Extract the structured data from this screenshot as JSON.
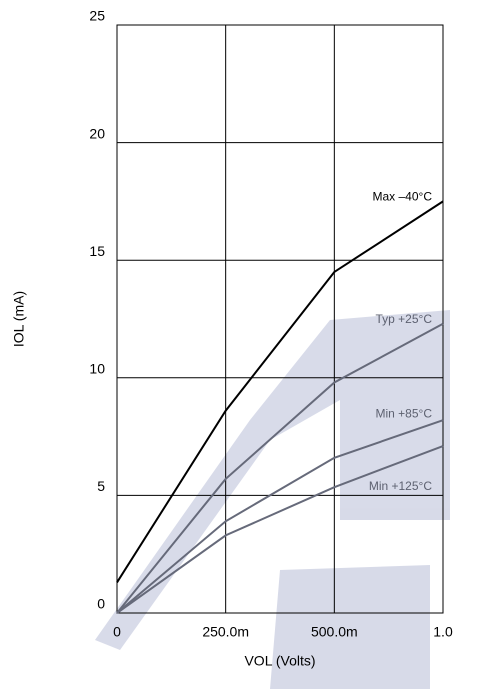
{
  "chart_data": {
    "type": "line",
    "x_label": "VOL (Volts)",
    "y_label": "IOL (mA)",
    "categories": [
      "0",
      "250.0m",
      "500.0m",
      "1.0"
    ],
    "series": [
      {
        "name": "Max –40°C",
        "color": "#000000",
        "values": [
          1.3,
          8.6,
          14.5,
          17.5
        ]
      },
      {
        "name": "Typ +25°C",
        "color": "#666a7a",
        "values": [
          0,
          5.7,
          9.8,
          12.3
        ]
      },
      {
        "name": "Min +85°C",
        "color": "#666a7a",
        "values": [
          0,
          3.9,
          6.6,
          8.2
        ]
      },
      {
        "name": "Min +125°C",
        "color": "#666a7a",
        "values": [
          0,
          3.3,
          5.35,
          7.1
        ]
      }
    ],
    "ylim": [
      0,
      25
    ],
    "yticks": [
      0,
      5,
      10,
      15,
      20,
      25
    ],
    "grid": true
  }
}
